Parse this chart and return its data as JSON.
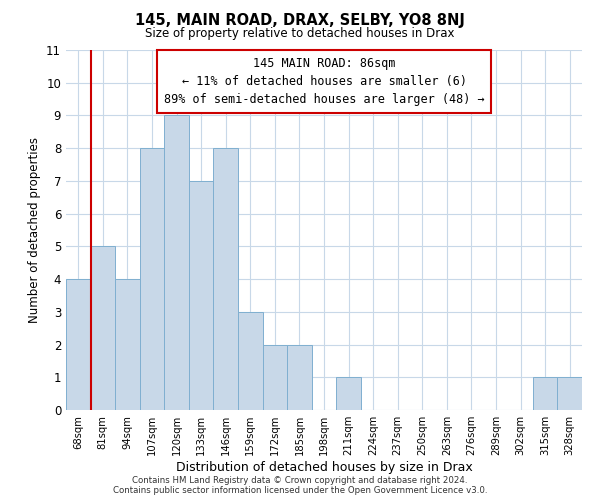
{
  "title": "145, MAIN ROAD, DRAX, SELBY, YO8 8NJ",
  "subtitle": "Size of property relative to detached houses in Drax",
  "xlabel": "Distribution of detached houses by size in Drax",
  "ylabel": "Number of detached properties",
  "bar_labels": [
    "68sqm",
    "81sqm",
    "94sqm",
    "107sqm",
    "120sqm",
    "133sqm",
    "146sqm",
    "159sqm",
    "172sqm",
    "185sqm",
    "198sqm",
    "211sqm",
    "224sqm",
    "237sqm",
    "250sqm",
    "263sqm",
    "276sqm",
    "289sqm",
    "302sqm",
    "315sqm",
    "328sqm"
  ],
  "bar_values": [
    4,
    5,
    4,
    8,
    9,
    7,
    8,
    3,
    2,
    2,
    0,
    1,
    0,
    0,
    0,
    0,
    0,
    0,
    0,
    1,
    1
  ],
  "bar_color": "#c8d8e8",
  "bar_edge_color": "#7fafd0",
  "vline_x": 1,
  "vline_color": "#cc0000",
  "ylim": [
    0,
    11
  ],
  "yticks": [
    0,
    1,
    2,
    3,
    4,
    5,
    6,
    7,
    8,
    9,
    10,
    11
  ],
  "annotation_title": "145 MAIN ROAD: 86sqm",
  "annotation_line1": "← 11% of detached houses are smaller (6)",
  "annotation_line2": "89% of semi-detached houses are larger (48) →",
  "annotation_box_color": "#ffffff",
  "annotation_box_edge": "#cc0000",
  "footer_line1": "Contains HM Land Registry data © Crown copyright and database right 2024.",
  "footer_line2": "Contains public sector information licensed under the Open Government Licence v3.0.",
  "background_color": "#ffffff",
  "grid_color": "#c8d8e8"
}
